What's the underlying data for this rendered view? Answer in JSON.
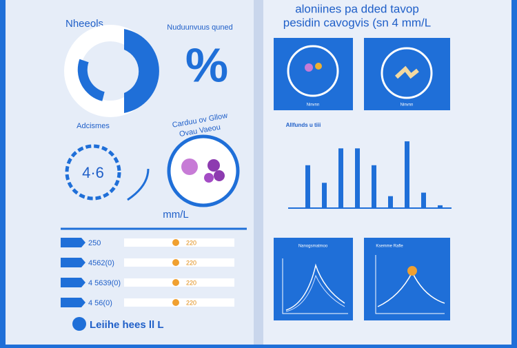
{
  "left": {
    "heading": "Nheeols",
    "subheading": "Nuduunvuus quned",
    "big_symbol": "%",
    "gauge_label": "Adcismes",
    "gauge_value": "4·6",
    "molecule_caption_1": "Carduu ov Gllow",
    "molecule_caption_2": "Ovau Vaeou",
    "unit": "mm/L",
    "rows": [
      {
        "label": "250",
        "note": "220"
      },
      {
        "label": "4562(0)",
        "note": "220"
      },
      {
        "label": "4 5639(0)",
        "note": "220"
      },
      {
        "label": "4 56(0)",
        "note": "220"
      }
    ],
    "footer": "Leiihe hees ll L"
  },
  "right": {
    "title_line_1": "aloniines pa dded tavop",
    "title_line_2": "pesidin cavogvis (sn 4 mm/L",
    "panel_caption": "Ninvnn",
    "bar_chart": {
      "title": "Allfunds u tiii",
      "values": [
        61,
        36,
        85,
        85,
        61,
        17,
        95,
        22,
        4
      ],
      "ylim": [
        0,
        100
      ]
    },
    "line_panel_1": "Nanogsmatmoo",
    "line_panel_2": "Ksemme Rafle"
  }
}
